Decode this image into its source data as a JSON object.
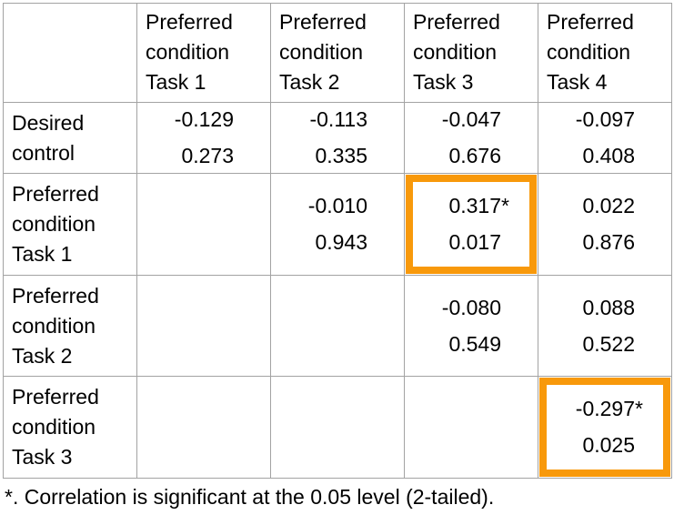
{
  "table": {
    "corner_label": "",
    "column_headers": [
      "Preferred condition Task 1",
      "Preferred condition Task 2",
      "Preferred condition Task 3",
      "Preferred condition Task 4"
    ],
    "rows": [
      {
        "label": "Desired control",
        "cells": [
          {
            "r": "-0.129",
            "p": "0.273",
            "sig": false,
            "highlight": false
          },
          {
            "r": "-0.113",
            "p": "0.335",
            "sig": false,
            "highlight": false
          },
          {
            "r": "-0.047",
            "p": "0.676",
            "sig": false,
            "highlight": false
          },
          {
            "r": "-0.097",
            "p": "0.408",
            "sig": false,
            "highlight": false
          }
        ]
      },
      {
        "label": "Preferred condition Task 1",
        "cells": [
          null,
          {
            "r": "-0.010",
            "p": "0.943",
            "sig": false,
            "highlight": false
          },
          {
            "r": "0.317",
            "p": "0.017",
            "sig": true,
            "highlight": true
          },
          {
            "r": "0.022",
            "p": "0.876",
            "sig": false,
            "highlight": false
          }
        ]
      },
      {
        "label": "Preferred condition Task 2",
        "cells": [
          null,
          null,
          {
            "r": "-0.080",
            "p": "0.549",
            "sig": false,
            "highlight": false
          },
          {
            "r": "0.088",
            "p": "0.522",
            "sig": false,
            "highlight": false
          }
        ]
      },
      {
        "label": "Preferred condition Task 3",
        "cells": [
          null,
          null,
          null,
          {
            "r": "-0.297",
            "p": "0.025",
            "sig": true,
            "highlight": true
          }
        ]
      }
    ],
    "sig_marker": "*",
    "footnote": "*. Correlation is significant at the 0.05 level (2-tailed)."
  },
  "colors": {
    "background": "#FFFFFF",
    "text": "#000000",
    "grid_border": "#A3A3A3",
    "highlight_box": "#F8990B"
  }
}
